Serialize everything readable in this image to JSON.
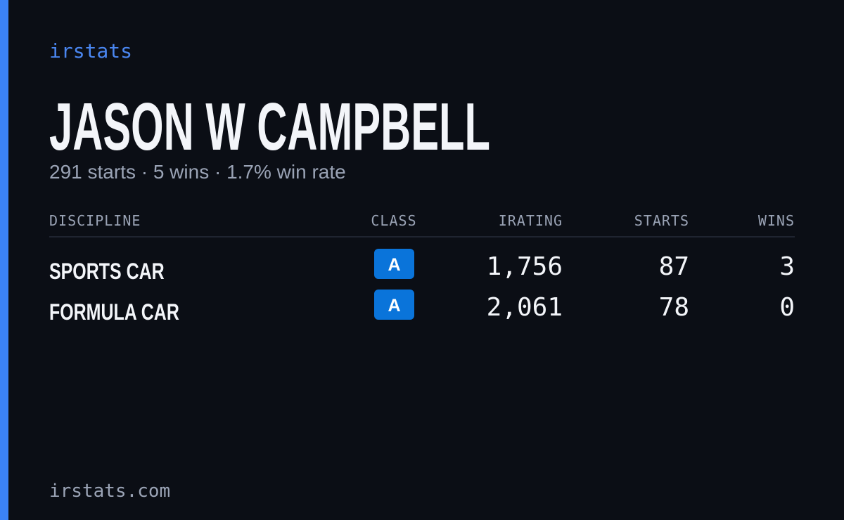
{
  "brand": "irstats",
  "profile": {
    "name": "JASON W CAMPBELL",
    "summary": "291 starts · 5 wins · 1.7% win rate"
  },
  "table": {
    "headers": [
      "DISCIPLINE",
      "CLASS",
      "IRATING",
      "STARTS",
      "WINS"
    ],
    "rows": [
      [
        "SPORTS CAR",
        "A",
        "1,756",
        "87",
        "3"
      ],
      [
        "FORMULA CAR",
        "A",
        "2,061",
        "78",
        "0"
      ]
    ]
  },
  "footer": "irstats.com"
}
